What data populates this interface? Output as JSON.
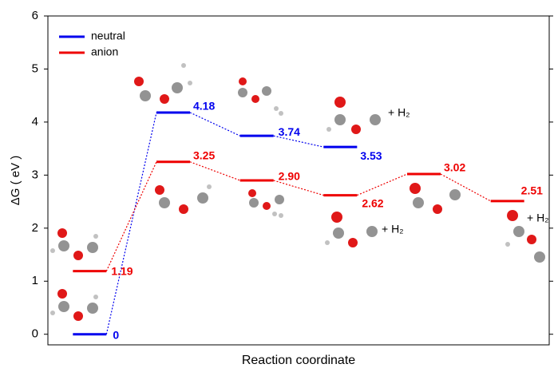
{
  "chart_data": {
    "type": "energy",
    "y_label": "ΔG ( eV )",
    "x_label": "Reaction coordinate",
    "categories": [
      null,
      null,
      null,
      null,
      null,
      null
    ],
    "series": [
      {
        "name": "neutral",
        "color": "#0000ee",
        "values": [
          0,
          4.18,
          3.74,
          3.53,
          null,
          null
        ],
        "value_labels": [
          "0",
          "4.18",
          "3.74",
          "3.53",
          null,
          null
        ]
      },
      {
        "name": "anion",
        "color": "#ee0000",
        "values": [
          1.19,
          3.25,
          2.9,
          2.62,
          3.02,
          2.51
        ],
        "value_labels": [
          "1.19",
          "3.25",
          "2.90",
          "2.62",
          "3.02",
          "2.51"
        ]
      }
    ],
    "annotations": [
      "+ H₂",
      "+ H₂",
      "+ H₂"
    ],
    "ylim": [
      -0.2,
      6
    ],
    "yticks": [
      0,
      1,
      2,
      3,
      4,
      5,
      6
    ],
    "legend": "upper left"
  }
}
